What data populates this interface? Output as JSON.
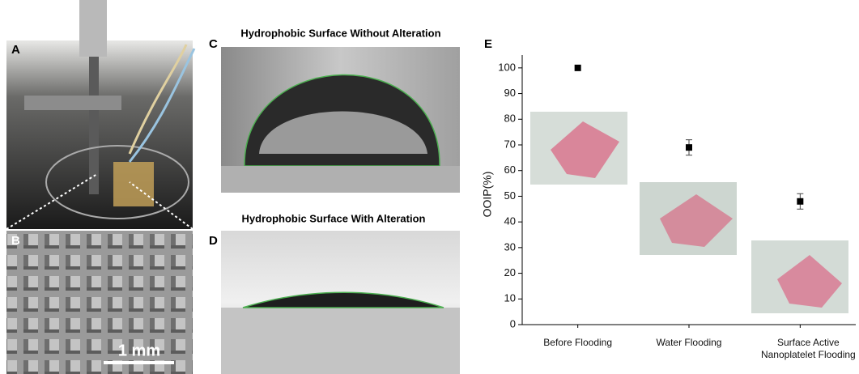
{
  "panels": {
    "a": {
      "label": "A"
    },
    "b": {
      "label": "B",
      "scale_bar": "1 mm"
    },
    "c": {
      "label": "C",
      "title": "Hydrophobic Surface Without Alteration"
    },
    "d": {
      "label": "D",
      "title": "Hydrophobic Surface With Alteration"
    },
    "e": {
      "label": "E"
    }
  },
  "chart_data": {
    "type": "scatter",
    "y_label": "OOIP(%)",
    "categories": [
      "Before Flooding",
      "Water Flooding",
      "Surface Active Nanoplatelet Flooding"
    ],
    "values": [
      100,
      69,
      48
    ],
    "errors": [
      null,
      3,
      3
    ],
    "color": "#000000",
    "ylim": [
      0,
      105
    ],
    "yticks": [
      0,
      10,
      20,
      30,
      40,
      50,
      60,
      70,
      80,
      90,
      100
    ]
  }
}
